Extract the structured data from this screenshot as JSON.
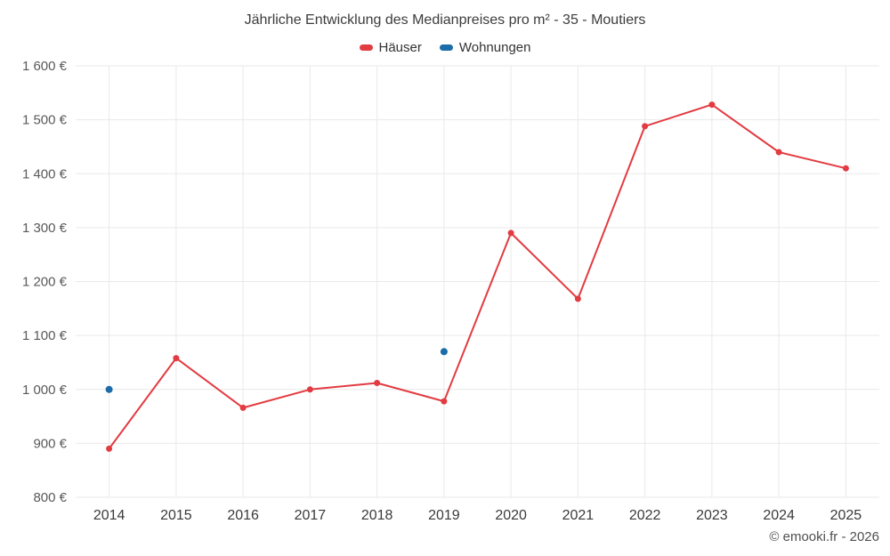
{
  "title": "Jährliche Entwicklung des Medianpreises pro m² - 35 - Moutiers",
  "footer": {
    "credit": "© emooki.fr - 2026"
  },
  "chart_data": {
    "type": "line",
    "title": "Jährliche Entwicklung des Medianpreises pro m² - 35 - Moutiers",
    "x": [
      "2014",
      "2015",
      "2016",
      "2017",
      "2018",
      "2019",
      "2020",
      "2021",
      "2022",
      "2023",
      "2024",
      "2025"
    ],
    "series": [
      {
        "id": "hauser",
        "name": "Häuser",
        "color": "#e23b41",
        "draw_line": true,
        "marker_radius": 3.5,
        "values": [
          890,
          1058,
          966,
          1000,
          1012,
          978,
          1290,
          1168,
          1488,
          1528,
          1440,
          1410
        ]
      },
      {
        "id": "wohnungen",
        "name": "Wohnungen",
        "color": "#1b6ca8",
        "draw_line": false,
        "marker_radius": 4,
        "values": [
          1000,
          null,
          null,
          null,
          null,
          1070,
          null,
          null,
          null,
          null,
          null,
          null
        ]
      }
    ],
    "ylabel": "",
    "xlabel": "",
    "ylim": [
      800,
      1600
    ],
    "ytick_step": 100,
    "ytick_labels": [
      "800 €",
      "900 €",
      "1 000 €",
      "1 100 €",
      "1 200 €",
      "1 300 €",
      "1 400 €",
      "1 500 €",
      "1 600 €"
    ],
    "grid": true,
    "grid_color": "#e9e9e9",
    "legend_position": "top"
  }
}
